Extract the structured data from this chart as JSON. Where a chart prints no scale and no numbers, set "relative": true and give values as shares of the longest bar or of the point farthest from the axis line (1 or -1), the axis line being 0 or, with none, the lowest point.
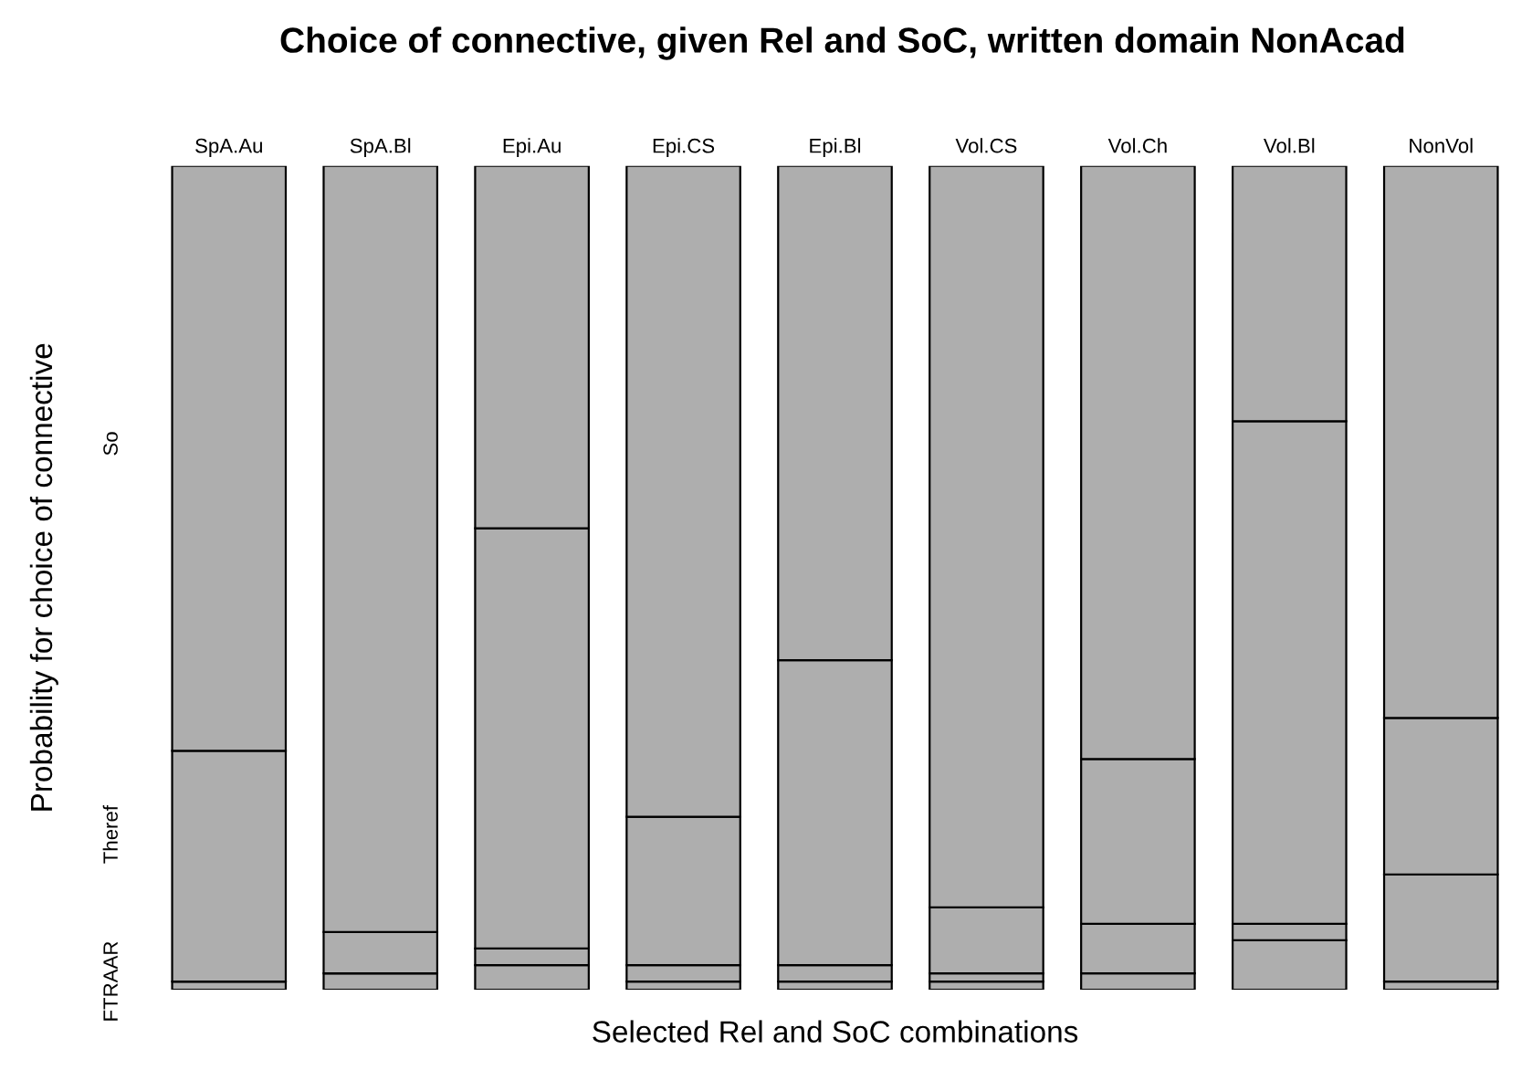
{
  "chart_data": {
    "type": "bar",
    "stacked": true,
    "relative": true,
    "title": "Choice of connective, given Rel and SoC, written domain NonAcad",
    "xlabel": "Selected Rel and SoC combinations",
    "ylabel": "Probability for choice of connective",
    "categories": [
      "SpA.Au",
      "SpA.Bl",
      "Epi.Au",
      "Epi.CS",
      "Epi.Bl",
      "Vol.CS",
      "Vol.Ch",
      "Vol.Bl",
      "NonVol"
    ],
    "series": [
      {
        "name": "FTRAAR",
        "color": "#aeaeae",
        "values": [
          0.01,
          0.02,
          0.03,
          0.01,
          0.01,
          0.01,
          0.02,
          0.06,
          0.01
        ]
      },
      {
        "color": "#aeaeae",
        "values": [
          0,
          0,
          0.02,
          0.02,
          0.02,
          0.01,
          0.06,
          0.02,
          0.13
        ]
      },
      {
        "name": "Theref",
        "color": "#aeaeae",
        "values": [
          0.28,
          0.05,
          0.51,
          0.18,
          0.37,
          0.08,
          0.2,
          0.61,
          0.19
        ]
      },
      {
        "name": "So",
        "color": "#aeaeae",
        "values": [
          0.71,
          0.93,
          0.44,
          0.79,
          0.6,
          0.9,
          0.72,
          0.31,
          0.67
        ]
      }
    ],
    "legend": false,
    "grid": false
  }
}
